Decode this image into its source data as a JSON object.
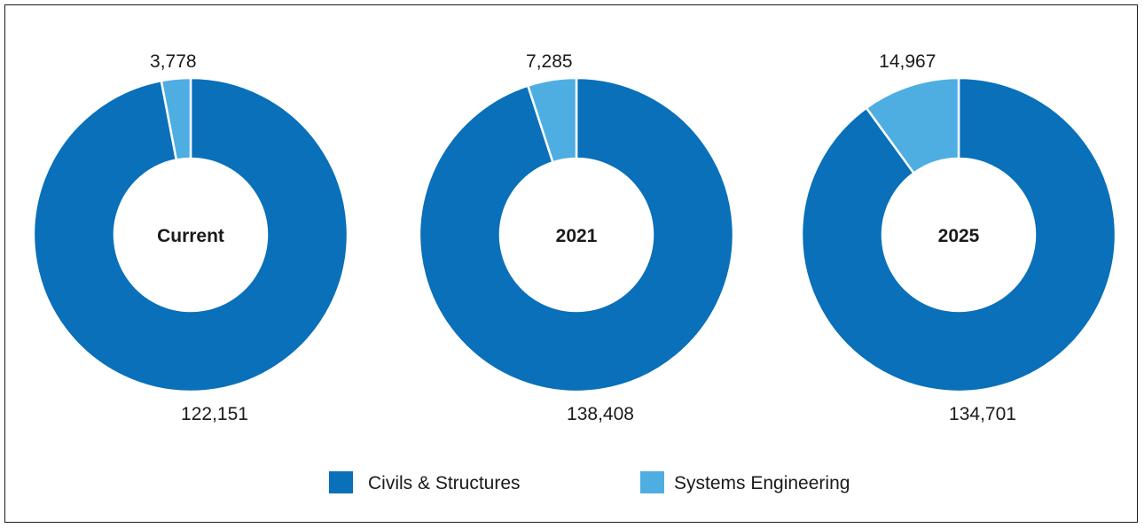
{
  "chart_data": {
    "type": "pie",
    "categories": [
      "Civils & Structures",
      "Systems Engineering"
    ],
    "colors": {
      "Civils & Structures": "#0970b9",
      "Systems Engineering": "#4eaee2"
    },
    "charts": [
      {
        "center_label": "Current",
        "slices": [
          {
            "category": "Civils & Structures",
            "value": 122151,
            "label": "122,151"
          },
          {
            "category": "Systems Engineering",
            "value": 3778,
            "label": "3,778"
          }
        ]
      },
      {
        "center_label": "2021",
        "slices": [
          {
            "category": "Civils & Structures",
            "value": 138408,
            "label": "138,408"
          },
          {
            "category": "Systems Engineering",
            "value": 7285,
            "label": "7,285"
          }
        ]
      },
      {
        "center_label": "2025",
        "slices": [
          {
            "category": "Civils & Structures",
            "value": 134701,
            "label": "134,701"
          },
          {
            "category": "Systems Engineering",
            "value": 14967,
            "label": "14,967"
          }
        ]
      }
    ],
    "legend_placement": "bottom"
  }
}
